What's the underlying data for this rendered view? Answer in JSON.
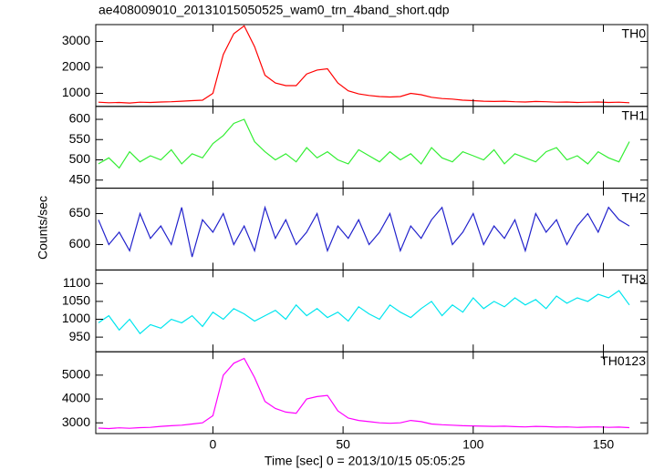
{
  "figure": {
    "title": "ae408009010_20131015050525_wam0_trn_4band_short.qdp",
    "ylabel": "Counts/sec",
    "xlabel": "Time [sec] 0 = 2013/10/15 05:05:25"
  },
  "chart_data": [
    {
      "type": "line",
      "label": "TH0",
      "color": "#ff0000",
      "xlim": [
        -45,
        167
      ],
      "ylim": [
        500,
        3650
      ],
      "xticks": [
        0,
        50,
        100,
        150
      ],
      "yticks": [
        1000,
        2000,
        3000
      ],
      "x": [
        -44,
        -40,
        -36,
        -32,
        -28,
        -24,
        -20,
        -16,
        -12,
        -8,
        -4,
        0,
        4,
        8,
        12,
        16,
        20,
        24,
        28,
        32,
        36,
        40,
        44,
        48,
        52,
        56,
        60,
        64,
        68,
        72,
        76,
        80,
        84,
        88,
        92,
        96,
        100,
        104,
        108,
        112,
        116,
        120,
        124,
        128,
        132,
        136,
        140,
        144,
        148,
        152,
        156,
        160
      ],
      "values": [
        660,
        640,
        650,
        630,
        660,
        650,
        670,
        680,
        700,
        720,
        740,
        1000,
        2500,
        3300,
        3600,
        2800,
        1700,
        1400,
        1300,
        1300,
        1750,
        1900,
        1950,
        1400,
        1100,
        980,
        920,
        880,
        860,
        880,
        1000,
        950,
        850,
        800,
        780,
        740,
        720,
        700,
        690,
        700,
        680,
        670,
        690,
        680,
        660,
        670,
        650,
        660,
        670,
        650,
        660,
        640
      ]
    },
    {
      "type": "line",
      "label": "TH1",
      "color": "#33ee33",
      "xlim": [
        -45,
        167
      ],
      "ylim": [
        430,
        632
      ],
      "xticks": [
        0,
        50,
        100,
        150
      ],
      "yticks": [
        450,
        500,
        550,
        600
      ],
      "x": [
        -44,
        -40,
        -36,
        -32,
        -28,
        -24,
        -20,
        -16,
        -12,
        -8,
        -4,
        0,
        4,
        8,
        12,
        16,
        20,
        24,
        28,
        32,
        36,
        40,
        44,
        48,
        52,
        56,
        60,
        64,
        68,
        72,
        76,
        80,
        84,
        88,
        92,
        96,
        100,
        104,
        108,
        112,
        116,
        120,
        124,
        128,
        132,
        136,
        140,
        144,
        148,
        152,
        156,
        160
      ],
      "values": [
        490,
        505,
        480,
        520,
        495,
        510,
        500,
        525,
        490,
        515,
        505,
        540,
        560,
        590,
        600,
        545,
        520,
        500,
        515,
        495,
        530,
        505,
        520,
        500,
        490,
        525,
        510,
        495,
        520,
        500,
        515,
        490,
        530,
        505,
        495,
        520,
        510,
        500,
        525,
        490,
        515,
        505,
        495,
        520,
        530,
        500,
        510,
        490,
        520,
        505,
        495,
        545
      ]
    },
    {
      "type": "line",
      "label": "TH2",
      "color": "#2222cc",
      "xlim": [
        -45,
        167
      ],
      "ylim": [
        559,
        691
      ],
      "xticks": [
        0,
        50,
        100,
        150
      ],
      "yticks": [
        600,
        650
      ],
      "x": [
        -44,
        -40,
        -36,
        -32,
        -28,
        -24,
        -20,
        -16,
        -12,
        -8,
        -4,
        0,
        4,
        8,
        12,
        16,
        20,
        24,
        28,
        32,
        36,
        40,
        44,
        48,
        52,
        56,
        60,
        64,
        68,
        72,
        76,
        80,
        84,
        88,
        92,
        96,
        100,
        104,
        108,
        112,
        116,
        120,
        124,
        128,
        132,
        136,
        140,
        144,
        148,
        152,
        156,
        160
      ],
      "values": [
        640,
        600,
        620,
        590,
        650,
        610,
        630,
        600,
        660,
        580,
        640,
        620,
        650,
        600,
        630,
        590,
        660,
        610,
        640,
        600,
        620,
        650,
        590,
        630,
        610,
        640,
        600,
        620,
        650,
        590,
        630,
        610,
        640,
        660,
        600,
        620,
        650,
        600,
        630,
        610,
        640,
        590,
        650,
        620,
        640,
        600,
        630,
        650,
        620,
        660,
        640,
        630
      ]
    },
    {
      "type": "line",
      "label": "TH3",
      "color": "#00e5ee",
      "xlim": [
        -45,
        167
      ],
      "ylim": [
        909,
        1138
      ],
      "xticks": [
        0,
        50,
        100,
        150
      ],
      "yticks": [
        950,
        1000,
        1050,
        1100
      ],
      "x": [
        -44,
        -40,
        -36,
        -32,
        -28,
        -24,
        -20,
        -16,
        -12,
        -8,
        -4,
        0,
        4,
        8,
        12,
        16,
        20,
        24,
        28,
        32,
        36,
        40,
        44,
        48,
        52,
        56,
        60,
        64,
        68,
        72,
        76,
        80,
        84,
        88,
        92,
        96,
        100,
        104,
        108,
        112,
        116,
        120,
        124,
        128,
        132,
        136,
        140,
        144,
        148,
        152,
        156,
        160
      ],
      "values": [
        990,
        1010,
        970,
        1000,
        960,
        985,
        975,
        1000,
        990,
        1010,
        980,
        1020,
        1000,
        1030,
        1015,
        995,
        1010,
        1025,
        1000,
        1040,
        1010,
        1030,
        1005,
        1020,
        995,
        1035,
        1015,
        1000,
        1040,
        1020,
        1005,
        1030,
        1050,
        1010,
        1040,
        1020,
        1060,
        1030,
        1050,
        1035,
        1060,
        1040,
        1055,
        1030,
        1065,
        1045,
        1060,
        1050,
        1070,
        1060,
        1080,
        1040
      ]
    },
    {
      "type": "line",
      "label": "TH0123",
      "color": "#ff00ff",
      "xlim": [
        -45,
        167
      ],
      "ylim": [
        2550,
        5980
      ],
      "xticks": [
        0,
        50,
        100,
        150
      ],
      "yticks": [
        3000,
        4000,
        5000
      ],
      "x": [
        -44,
        -40,
        -36,
        -32,
        -28,
        -24,
        -20,
        -16,
        -12,
        -8,
        -4,
        0,
        4,
        8,
        12,
        16,
        20,
        24,
        28,
        32,
        36,
        40,
        44,
        48,
        52,
        56,
        60,
        64,
        68,
        72,
        76,
        80,
        84,
        88,
        92,
        96,
        100,
        104,
        108,
        112,
        116,
        120,
        124,
        128,
        132,
        136,
        140,
        144,
        148,
        152,
        156,
        160
      ],
      "values": [
        2780,
        2760,
        2790,
        2770,
        2800,
        2810,
        2850,
        2880,
        2900,
        2950,
        3000,
        3300,
        5000,
        5500,
        5700,
        4900,
        3900,
        3600,
        3450,
        3400,
        4000,
        4100,
        4150,
        3500,
        3200,
        3100,
        3050,
        3000,
        2980,
        3000,
        3100,
        3050,
        2950,
        2920,
        2900,
        2880,
        2870,
        2860,
        2850,
        2860,
        2840,
        2830,
        2850,
        2840,
        2820,
        2830,
        2810,
        2820,
        2830,
        2810,
        2820,
        2800
      ]
    }
  ]
}
